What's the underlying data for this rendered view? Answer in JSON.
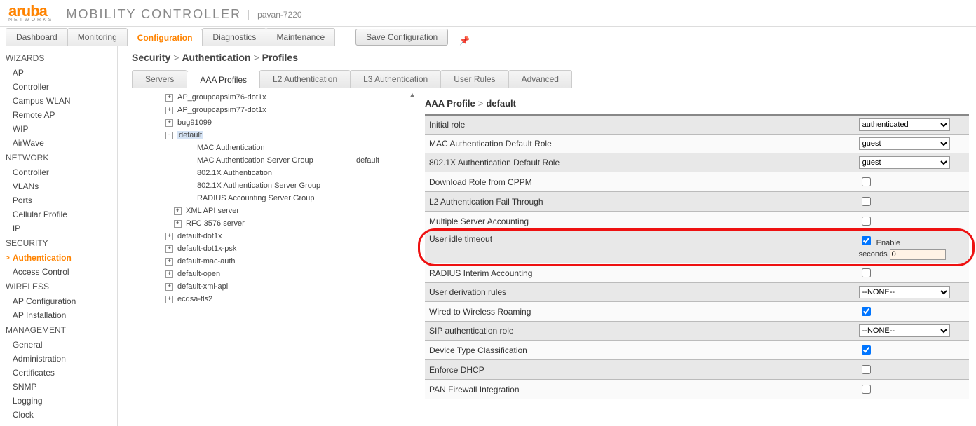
{
  "brand": {
    "name": "aruba",
    "sub": "NETWORKS",
    "product": "MOBILITY CONTROLLER",
    "host": "pavan-7220"
  },
  "maintabs": [
    "Dashboard",
    "Monitoring",
    "Configuration",
    "Diagnostics",
    "Maintenance"
  ],
  "maintab_active": 2,
  "save_label": "Save Configuration",
  "leftnav": [
    {
      "section": "WIZARDS"
    },
    {
      "item": "AP"
    },
    {
      "item": "Controller"
    },
    {
      "item": "Campus WLAN"
    },
    {
      "item": "Remote AP"
    },
    {
      "item": "WIP"
    },
    {
      "item": "AirWave"
    },
    {
      "section": "NETWORK"
    },
    {
      "item": "Controller"
    },
    {
      "item": "VLANs"
    },
    {
      "item": "Ports"
    },
    {
      "item": "Cellular Profile"
    },
    {
      "item": "IP"
    },
    {
      "section": "SECURITY"
    },
    {
      "item": "Authentication",
      "active": true
    },
    {
      "item": "Access Control"
    },
    {
      "section": "WIRELESS"
    },
    {
      "item": "AP Configuration"
    },
    {
      "item": "AP Installation"
    },
    {
      "section": "MANAGEMENT"
    },
    {
      "item": "General"
    },
    {
      "item": "Administration"
    },
    {
      "item": "Certificates"
    },
    {
      "item": "SNMP"
    },
    {
      "item": "Logging"
    },
    {
      "item": "Clock"
    }
  ],
  "breadcrumb": [
    "Security",
    "Authentication",
    "Profiles"
  ],
  "subtabs": [
    "Servers",
    "AAA Profiles",
    "L2 Authentication",
    "L3 Authentication",
    "User Rules",
    "Advanced"
  ],
  "subtab_active": 1,
  "tree": [
    {
      "lvl": 1,
      "exp": "+",
      "text": "AP_groupcapsim76-dot1x"
    },
    {
      "lvl": 1,
      "exp": "+",
      "text": "AP_groupcapsim77-dot1x"
    },
    {
      "lvl": 1,
      "exp": "+",
      "text": "bug91099"
    },
    {
      "lvl": 1,
      "exp": "-",
      "text": "default",
      "hl": true
    },
    {
      "lvl": 2,
      "text": "MAC Authentication"
    },
    {
      "lvl": 2,
      "text": "MAC Authentication Server Group",
      "extra": "default"
    },
    {
      "lvl": 2,
      "text": "802.1X Authentication"
    },
    {
      "lvl": 2,
      "text": "802.1X Authentication Server Group"
    },
    {
      "lvl": 2,
      "text": "RADIUS Accounting Server Group"
    },
    {
      "lvl": 2,
      "exp": "+",
      "text": "XML API server",
      "alt": true
    },
    {
      "lvl": 2,
      "exp": "+",
      "text": "RFC 3576 server",
      "alt": true
    },
    {
      "lvl": 1,
      "exp": "+",
      "text": "default-dot1x"
    },
    {
      "lvl": 1,
      "exp": "+",
      "text": "default-dot1x-psk"
    },
    {
      "lvl": 1,
      "exp": "+",
      "text": "default-mac-auth"
    },
    {
      "lvl": 1,
      "exp": "+",
      "text": "default-open"
    },
    {
      "lvl": 1,
      "exp": "+",
      "text": "default-xml-api"
    },
    {
      "lvl": 1,
      "exp": "+",
      "text": "ecdsa-tls2"
    }
  ],
  "profile_title": [
    "AAA Profile",
    "default"
  ],
  "props": [
    {
      "label": "Initial role",
      "type": "select",
      "value": "authenticated"
    },
    {
      "label": "MAC Authentication Default Role",
      "type": "select",
      "value": "guest"
    },
    {
      "label": "802.1X Authentication Default Role",
      "type": "select",
      "value": "guest"
    },
    {
      "label": "Download Role from CPPM",
      "type": "checkbox",
      "checked": false
    },
    {
      "label": "L2 Authentication Fail Through",
      "type": "checkbox",
      "checked": false
    },
    {
      "label": "Multiple Server Accounting",
      "type": "checkbox",
      "checked": false
    },
    {
      "label": "User idle timeout",
      "type": "idle",
      "enable_label": "Enable",
      "seconds_label": "seconds",
      "enable_checked": true,
      "seconds": "0",
      "highlight": true
    },
    {
      "label": "RADIUS Interim Accounting",
      "type": "checkbox",
      "checked": false
    },
    {
      "label": "User derivation rules",
      "type": "select",
      "value": "--NONE--"
    },
    {
      "label": "Wired to Wireless Roaming",
      "type": "checkbox",
      "checked": true
    },
    {
      "label": "SIP authentication role",
      "type": "select",
      "value": "--NONE--"
    },
    {
      "label": "Device Type Classification",
      "type": "checkbox",
      "checked": true
    },
    {
      "label": "Enforce DHCP",
      "type": "checkbox",
      "checked": false
    },
    {
      "label": "PAN Firewall Integration",
      "type": "checkbox",
      "checked": false
    }
  ],
  "colors": {
    "accent": "#ff8300"
  }
}
